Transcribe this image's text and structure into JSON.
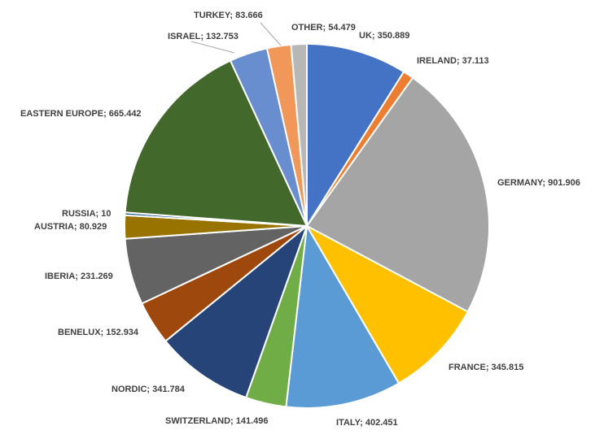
{
  "chart_data": {
    "type": "pie",
    "title": "",
    "start_angle_deg": 0,
    "direction": "clockwise",
    "slices": [
      {
        "label": "UK",
        "value": 350.889,
        "text": "UK; 350.889",
        "color": "#4472C4"
      },
      {
        "label": "IRELAND",
        "value": 37.113,
        "text": "IRELAND; 37.113",
        "color": "#ED7D31"
      },
      {
        "label": "GERMANY",
        "value": 901.906,
        "text": "GERMANY; 901.906",
        "color": "#A5A5A5"
      },
      {
        "label": "FRANCE",
        "value": 345.815,
        "text": "FRANCE; 345.815",
        "color": "#FFC000"
      },
      {
        "label": "ITALY",
        "value": 402.451,
        "text": "ITALY; 402.451",
        "color": "#5B9BD5"
      },
      {
        "label": "SWITZERLAND",
        "value": 141.496,
        "text": "SWITZERLAND; 141.496",
        "color": "#70AD47"
      },
      {
        "label": "NORDIC",
        "value": 341.784,
        "text": "NORDIC; 341.784",
        "color": "#264478"
      },
      {
        "label": "BENELUX",
        "value": 152.934,
        "text": "BENELUX; 152.934",
        "color": "#9E480E"
      },
      {
        "label": "IBERIA",
        "value": 231.269,
        "text": "IBERIA; 231.269",
        "color": "#636363"
      },
      {
        "label": "AUSTRIA",
        "value": 80.929,
        "text": "AUSTRIA; 80.929",
        "color": "#997300"
      },
      {
        "label": "RUSSIA",
        "value": 10,
        "text": "RUSSIA; 10",
        "color": "#255E91"
      },
      {
        "label": "EASTERN EUROPE",
        "value": 665.442,
        "text": "EASTERN EUROPE; 665.442",
        "color": "#43682B"
      },
      {
        "label": "ISRAEL",
        "value": 132.753,
        "text": "ISRAEL; 132.753",
        "color": "#698ED0"
      },
      {
        "label": "TURKEY",
        "value": 83.666,
        "text": "TURKEY; 83.666",
        "color": "#F1975A"
      },
      {
        "label": "OTHER",
        "value": 54.479,
        "text": "OTHER; 54.479",
        "color": "#B7B7B7"
      }
    ]
  }
}
